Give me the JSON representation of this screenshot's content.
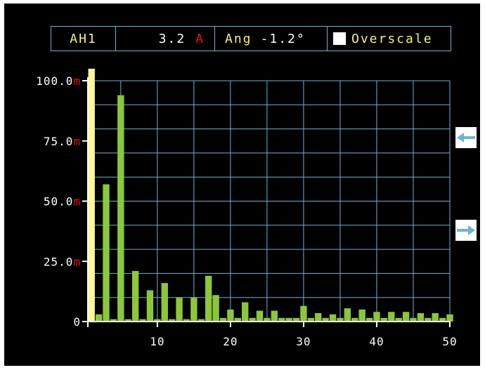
{
  "header": {
    "channel": "AH1",
    "current_value": "3.2",
    "current_unit": "A",
    "angle_label": "Ang",
    "angle_value": "-1.2°",
    "overscale_label": "Overscale"
  },
  "colors": {
    "background": "#000000",
    "grid": "#6fb2cf",
    "bar": "#8cc63f",
    "fundamental_bar": "#fff59d",
    "axis_text": "#ffffff",
    "unit_text": "#e11111",
    "header_text": "#f5f07a"
  },
  "chart_data": {
    "type": "bar",
    "x": [
      1,
      2,
      3,
      4,
      5,
      6,
      7,
      8,
      9,
      10,
      11,
      12,
      13,
      14,
      15,
      16,
      17,
      18,
      19,
      20,
      21,
      22,
      23,
      24,
      25,
      26,
      27,
      28,
      29,
      30,
      31,
      32,
      33,
      34,
      35,
      36,
      37,
      38,
      39,
      40,
      41,
      42,
      43,
      44,
      45,
      46,
      47,
      48,
      49,
      50
    ],
    "values": [
      105,
      3,
      57,
      1,
      94,
      1,
      21,
      1,
      13,
      1,
      16,
      1,
      10,
      1,
      10,
      1,
      19,
      11,
      1.5,
      5,
      1.5,
      8,
      1.5,
      4.5,
      1.5,
      4.5,
      1.5,
      1.5,
      1.5,
      6.5,
      1.5,
      3.5,
      1.5,
      3,
      1.5,
      5.5,
      1.5,
      5,
      1.5,
      4,
      1.5,
      4,
      1.5,
      4,
      1.5,
      3.5,
      1.5,
      3.5,
      1.5,
      3
    ],
    "overscale_indices": [
      0
    ],
    "ylim": [
      0,
      100
    ],
    "xlim": [
      0.5,
      50
    ],
    "y_ticks": [
      0,
      25,
      50,
      75,
      100
    ],
    "y_tick_values": [
      "0",
      "25.0",
      "50.0",
      "75.0",
      "100.0"
    ],
    "y_tick_units": [
      "",
      "m",
      "m",
      "m",
      "m"
    ],
    "x_ticks": [
      10,
      20,
      30,
      40,
      50
    ],
    "x_tick_labels": [
      "10",
      "20",
      "30",
      "40",
      "50"
    ],
    "grid": true,
    "title": "",
    "xlabel": "",
    "ylabel": ""
  },
  "nav": {
    "left_arrow": "left-arrow-icon",
    "right_arrow": "right-arrow-icon"
  }
}
